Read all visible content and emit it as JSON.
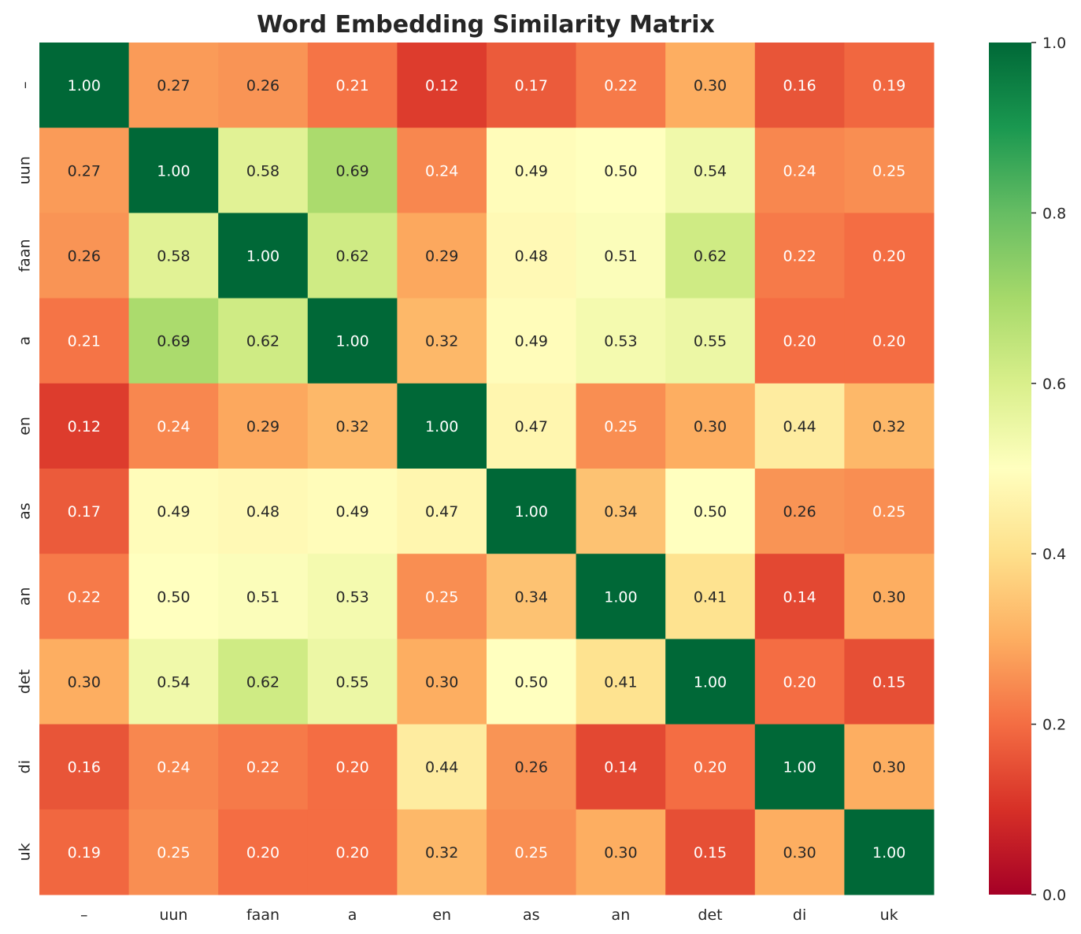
{
  "chart_data": {
    "type": "heatmap",
    "title": "Word Embedding Similarity Matrix",
    "xlabel": "",
    "ylabel": "",
    "labels": [
      "–",
      "uun",
      "faan",
      "a",
      "en",
      "as",
      "an",
      "det",
      "di",
      "uk"
    ],
    "values": [
      [
        1.0,
        0.27,
        0.26,
        0.21,
        0.12,
        0.17,
        0.22,
        0.3,
        0.16,
        0.19
      ],
      [
        0.27,
        1.0,
        0.58,
        0.69,
        0.24,
        0.49,
        0.5,
        0.54,
        0.24,
        0.25
      ],
      [
        0.26,
        0.58,
        1.0,
        0.62,
        0.29,
        0.48,
        0.51,
        0.62,
        0.22,
        0.2
      ],
      [
        0.21,
        0.69,
        0.62,
        1.0,
        0.32,
        0.49,
        0.53,
        0.55,
        0.2,
        0.2
      ],
      [
        0.12,
        0.24,
        0.29,
        0.32,
        1.0,
        0.47,
        0.25,
        0.3,
        0.44,
        0.32
      ],
      [
        0.17,
        0.49,
        0.48,
        0.49,
        0.47,
        1.0,
        0.34,
        0.5,
        0.26,
        0.25
      ],
      [
        0.22,
        0.5,
        0.51,
        0.53,
        0.25,
        0.34,
        1.0,
        0.41,
        0.14,
        0.3
      ],
      [
        0.3,
        0.54,
        0.62,
        0.55,
        0.3,
        0.5,
        0.41,
        1.0,
        0.2,
        0.15
      ],
      [
        0.16,
        0.24,
        0.22,
        0.2,
        0.44,
        0.26,
        0.14,
        0.2,
        1.0,
        0.3
      ],
      [
        0.19,
        0.25,
        0.2,
        0.2,
        0.32,
        0.25,
        0.3,
        0.15,
        0.3,
        1.0
      ]
    ],
    "colormap": "RdYlGn",
    "colormap_stops": [
      "#a50026",
      "#d73027",
      "#f46d43",
      "#fdae61",
      "#fee08b",
      "#ffffbf",
      "#d9ef8b",
      "#a6d96a",
      "#66bd63",
      "#1a9850",
      "#006837"
    ],
    "vmin": 0.0,
    "vmax": 1.0,
    "colorbar_ticks": [
      "0.0",
      "0.2",
      "0.4",
      "0.6",
      "0.8",
      "1.0"
    ],
    "annotations": true,
    "annotation_format": "0.00",
    "grid": false,
    "colorbar_position": "right"
  }
}
